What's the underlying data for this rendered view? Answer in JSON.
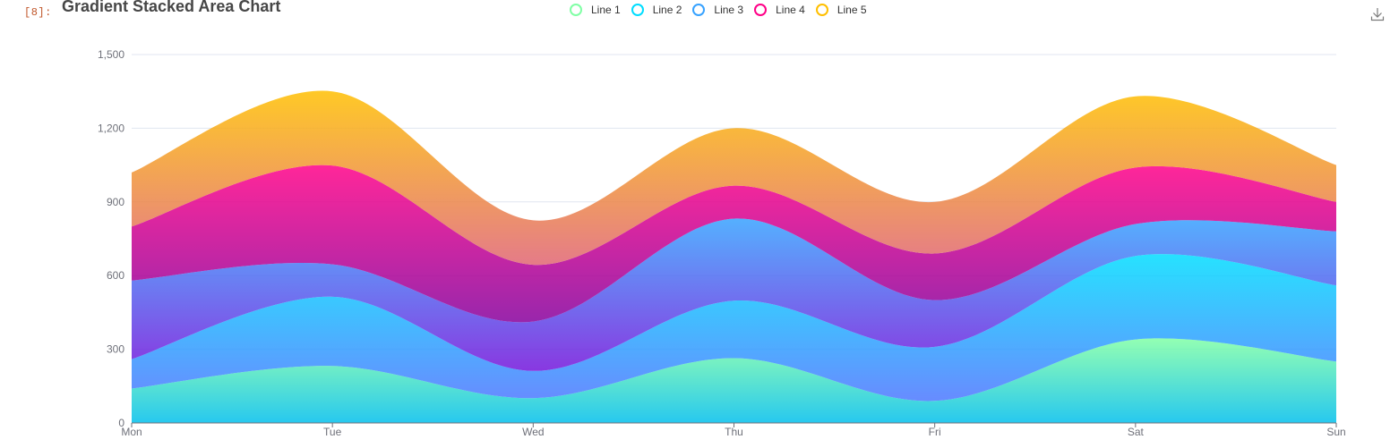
{
  "notebook": {
    "cell_prompt": "[8]:"
  },
  "toolbar": {
    "download_icon": "download-icon"
  },
  "colors": {
    "grid": "#e0e6f1",
    "axis": "#6e7079",
    "title": "#464646"
  },
  "chart_data": {
    "type": "area",
    "stacked": true,
    "smooth": true,
    "title": "Gradient Stacked Area Chart",
    "xlabel": "",
    "ylabel": "",
    "x": [
      "Mon",
      "Tue",
      "Wed",
      "Thu",
      "Fri",
      "Sat",
      "Sun"
    ],
    "ylim": [
      0,
      1500
    ],
    "yticks": [
      "0",
      "300",
      "600",
      "900",
      "1,200",
      "1,500"
    ],
    "grid": true,
    "legend_position": "top-center",
    "series": [
      {
        "name": "Line 1",
        "values": [
          140,
          232,
          101,
          264,
          90,
          340,
          250
        ],
        "color": "#80FFA5",
        "gradient": [
          "#80FFA5",
          "#01BFEC"
        ]
      },
      {
        "name": "Line 2",
        "values": [
          120,
          282,
          111,
          234,
          220,
          340,
          310
        ],
        "color": "#00DDFF",
        "gradient": [
          "#00DDFF",
          "#4D77FF"
        ]
      },
      {
        "name": "Line 3",
        "values": [
          320,
          132,
          201,
          334,
          190,
          130,
          220
        ],
        "color": "#37A2FF",
        "gradient": [
          "#37A2FF",
          "#7415DB"
        ]
      },
      {
        "name": "Line 4",
        "values": [
          220,
          402,
          231,
          134,
          190,
          230,
          120
        ],
        "color": "#FF0087",
        "gradient": [
          "#FF0087",
          "#87009D"
        ]
      },
      {
        "name": "Line 5",
        "values": [
          220,
          302,
          181,
          234,
          210,
          290,
          150
        ],
        "color": "#FFBF00",
        "gradient": [
          "#FFBF00",
          "#E06473"
        ]
      }
    ]
  }
}
